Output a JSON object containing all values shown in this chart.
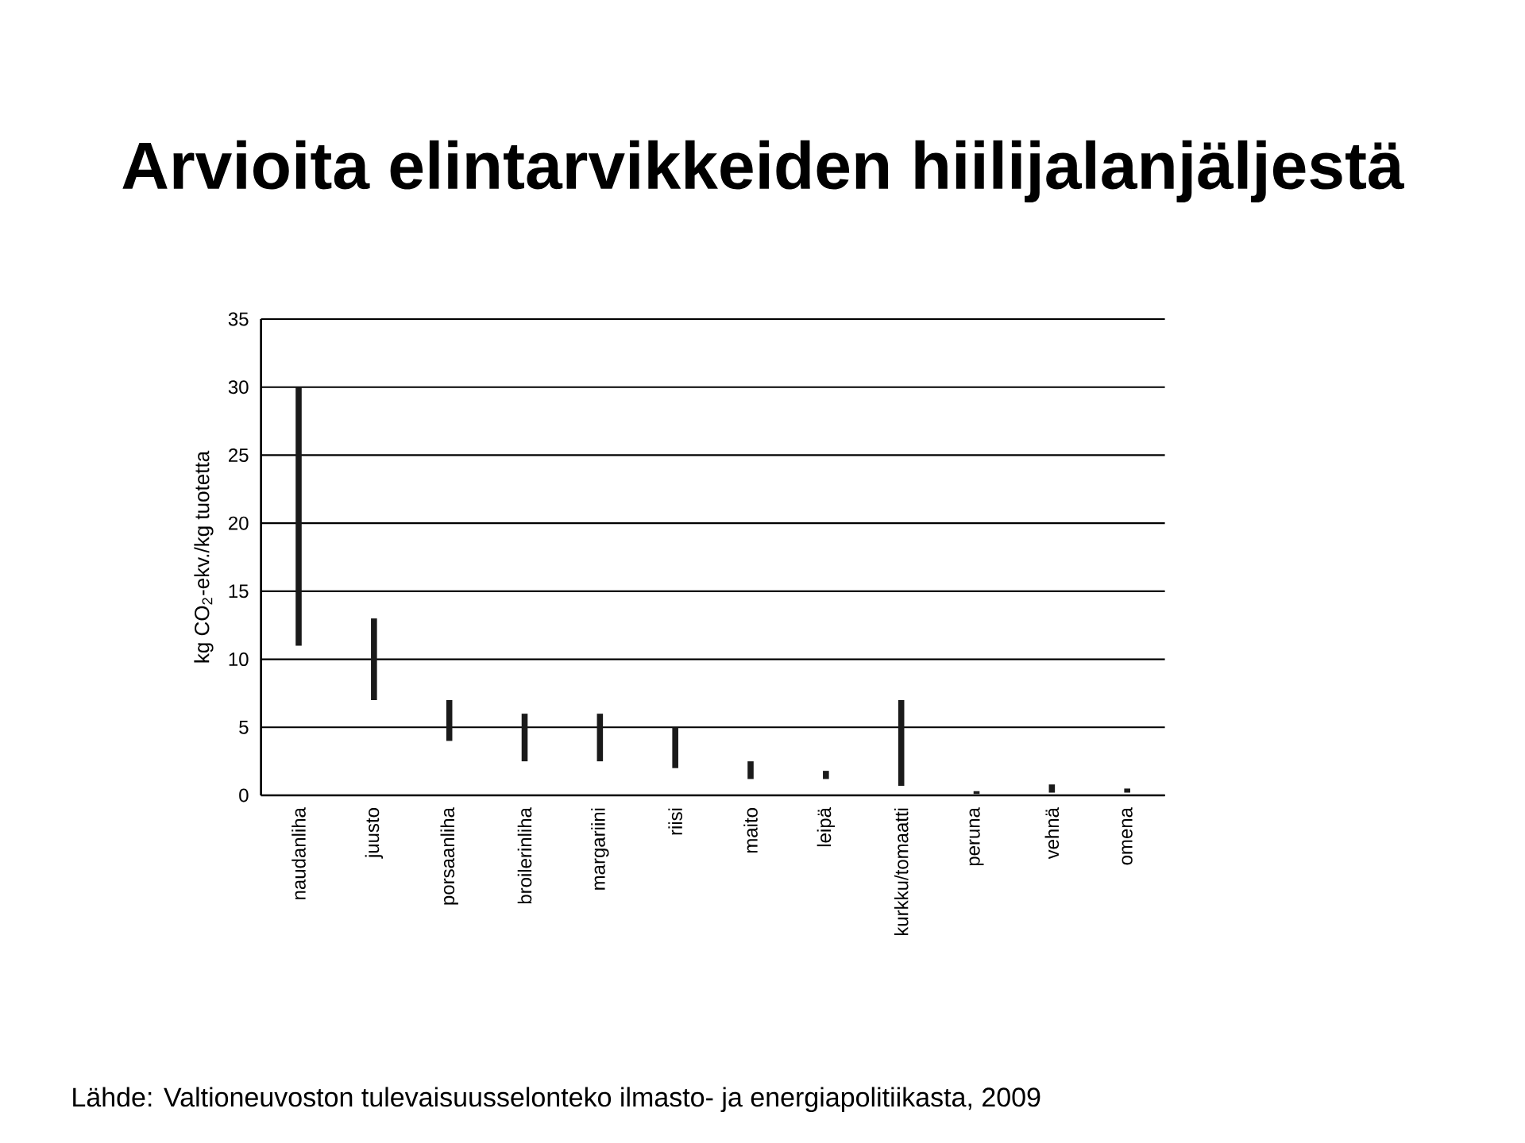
{
  "chart_data": {
    "type": "bar",
    "title": "Arvioita elintarvikkeiden hiilijalanjäljestä",
    "ylabel": "kg CO$_{2}$-ekv./kg tuotetta",
    "annotations": [
      "Lähde: Valtioneuvoston tulevaisuusselonteko ilmasto- ja energiapolitiikasta, 2009"
    ],
    "categories": [
      "naudanliha",
      "juusto",
      "porsaanliha",
      "broilerinliha",
      "margariini",
      "riisi",
      "maito",
      "leipä",
      "kurkku/tomaatti",
      "peruna",
      "vehnä",
      "omena"
    ],
    "base": [
      11,
      7,
      4,
      2.5,
      2.5,
      2,
      1.2,
      1.2,
      0.7,
      0.1,
      0.2,
      0.2
    ],
    "values": [
      19,
      6,
      3,
      3.5,
      3.5,
      3,
      1.3,
      0.6,
      6.3,
      0.2,
      0.6,
      0.3
    ],
    "color": "#1a1a1a",
    "ylim": [
      0,
      35
    ],
    "yticks": [
      0,
      5,
      10,
      15,
      20,
      25,
      30,
      35
    ],
    "grid": "y"
  }
}
